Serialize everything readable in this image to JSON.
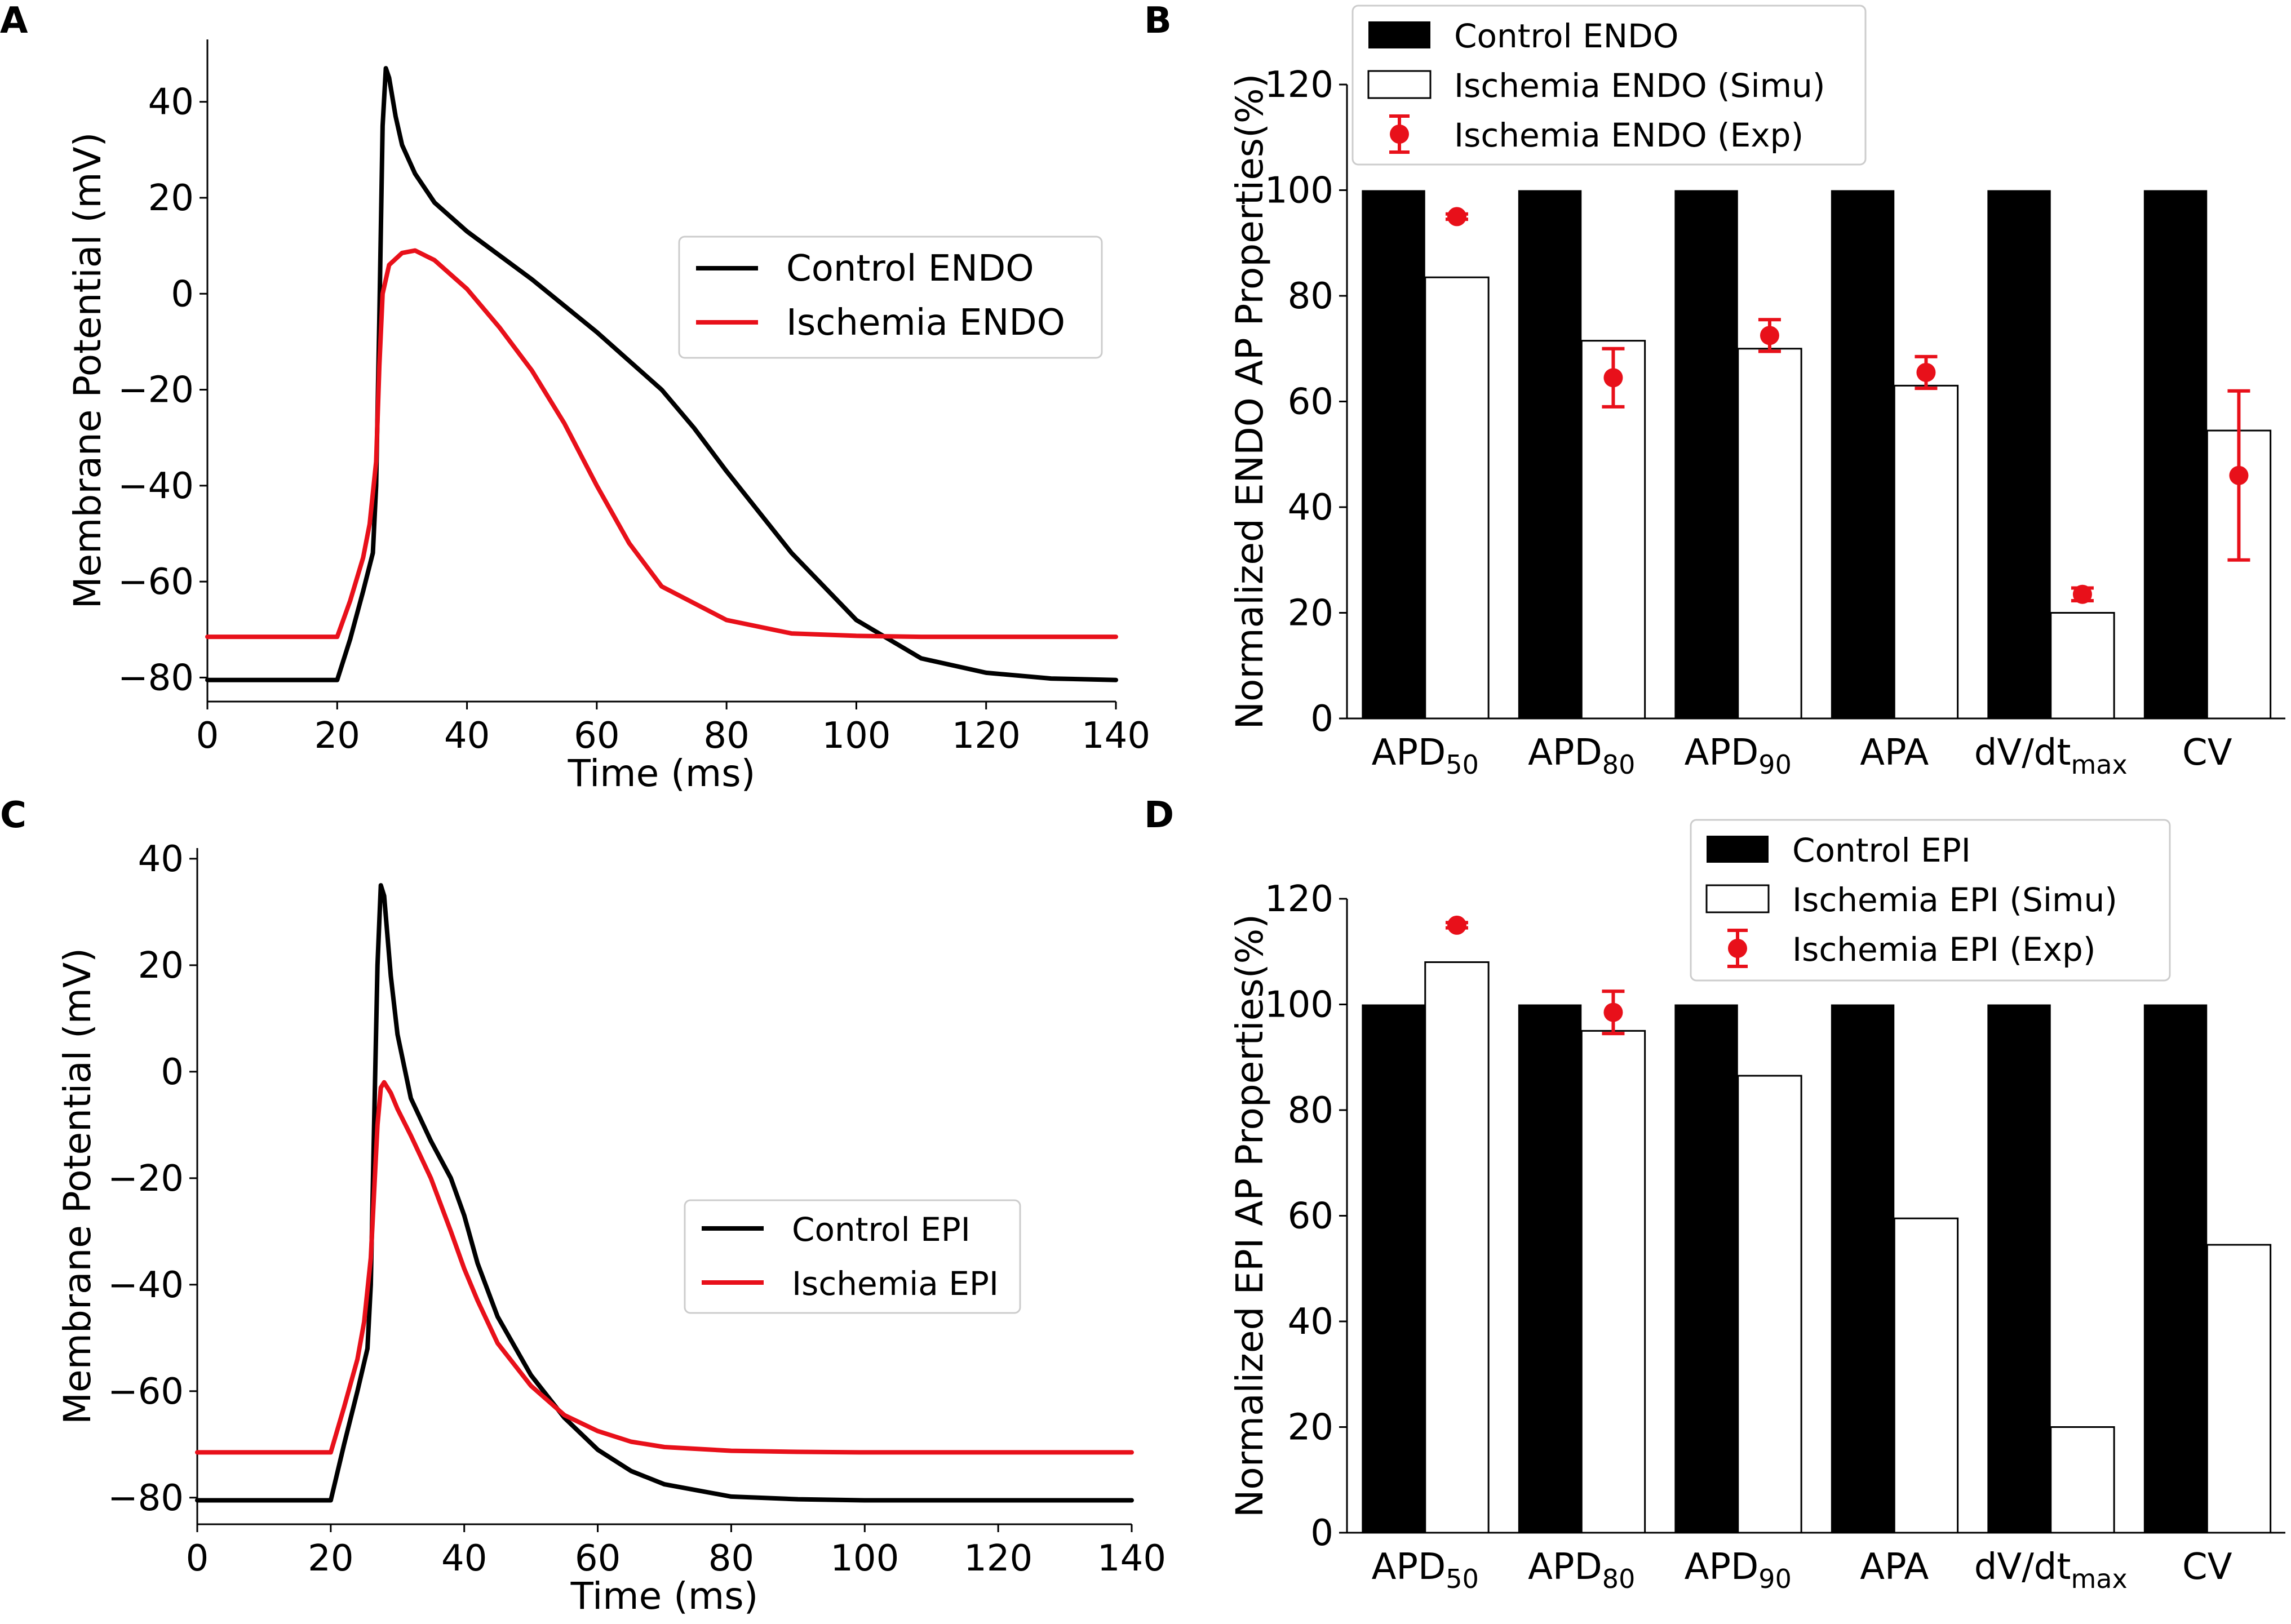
{
  "colors": {
    "control": "#000000",
    "ischemia": "#e8101a",
    "simu_fill": "#ffffff"
  },
  "panel_labels": {
    "a": "A",
    "b": "B",
    "c": "C",
    "d": "D"
  },
  "chart_data": [
    {
      "panel": "A",
      "type": "line",
      "xlabel": "Time (ms)",
      "ylabel": "Membrane Potential (mV)",
      "xlim": [
        0,
        140
      ],
      "ylim": [
        -85,
        53
      ],
      "xticks": [
        0,
        20,
        40,
        60,
        80,
        100,
        120,
        140
      ],
      "yticks": [
        -80,
        -60,
        -40,
        -20,
        0,
        20,
        40
      ],
      "tick_labels_x": [
        "0",
        "20",
        "40",
        "60",
        "80",
        "100",
        "120",
        "140"
      ],
      "tick_labels_y": [
        "−80",
        "−60",
        "−40",
        "−20",
        "0",
        "20",
        "40"
      ],
      "legend": [
        "Control ENDO",
        "Ischemia ENDO"
      ],
      "legend_position": "center-right",
      "series": [
        {
          "name": "Control ENDO",
          "color": "#000000",
          "x": [
            0,
            20,
            22,
            24,
            25.5,
            26,
            26.5,
            27,
            27.5,
            28,
            29,
            30,
            32,
            35,
            40,
            50,
            60,
            70,
            75,
            80,
            90,
            100,
            110,
            120,
            130,
            140
          ],
          "y": [
            -80.5,
            -80.5,
            -72,
            -62,
            -54,
            -40,
            -5,
            35,
            47,
            45,
            37,
            31,
            25,
            19,
            13,
            3,
            -8,
            -20,
            -28,
            -37,
            -54,
            -68,
            -76,
            -79,
            -80.2,
            -80.5
          ]
        },
        {
          "name": "Ischemia ENDO",
          "color": "#e8101a",
          "x": [
            0,
            20,
            22,
            24,
            25,
            26,
            26.5,
            27,
            28,
            30,
            32,
            35,
            40,
            45,
            50,
            55,
            60,
            65,
            70,
            80,
            90,
            100,
            110,
            120,
            140
          ],
          "y": [
            -71.5,
            -71.5,
            -64,
            -55,
            -48,
            -35,
            -15,
            0,
            6,
            8.5,
            9,
            7,
            1,
            -7,
            -16,
            -27,
            -40,
            -52,
            -61,
            -68,
            -70.8,
            -71.3,
            -71.5,
            -71.5,
            -71.5
          ]
        }
      ]
    },
    {
      "panel": "B",
      "type": "bar",
      "ylabel": "Normalized ENDO AP Properties(%)",
      "ylim": [
        0,
        120
      ],
      "yticks": [
        0,
        20,
        40,
        60,
        80,
        100,
        120
      ],
      "categories": [
        {
          "base": "APD",
          "sub": "50"
        },
        {
          "base": "APD",
          "sub": "80"
        },
        {
          "base": "APD",
          "sub": "90"
        },
        {
          "base": "APA",
          "sub": ""
        },
        {
          "base": "dV/dt",
          "sub": "max"
        },
        {
          "base": "CV",
          "sub": ""
        }
      ],
      "series": [
        {
          "name": "Control ENDO",
          "values": [
            100,
            100,
            100,
            100,
            100,
            100
          ]
        },
        {
          "name": "Ischemia ENDO (Simu)",
          "values": [
            83.5,
            71.5,
            70,
            63,
            20,
            54.5
          ]
        },
        {
          "name": "Ischemia ENDO (Exp)",
          "values": [
            95,
            64.5,
            72.5,
            65.5,
            23.5,
            46
          ],
          "errors": [
            0.5,
            5.5,
            3,
            3,
            1.2,
            16
          ]
        }
      ],
      "legend": [
        "Control ENDO",
        "Ischemia ENDO (Simu)",
        "Ischemia ENDO (Exp)"
      ],
      "legend_position": "top-left"
    },
    {
      "panel": "C",
      "type": "line",
      "xlabel": "Time (ms)",
      "ylabel": "Membrane Potential (mV)",
      "xlim": [
        0,
        140
      ],
      "ylim": [
        -85,
        42
      ],
      "xticks": [
        0,
        20,
        40,
        60,
        80,
        100,
        120,
        140
      ],
      "yticks": [
        -80,
        -60,
        -40,
        -20,
        0,
        20,
        40
      ],
      "tick_labels_x": [
        "0",
        "20",
        "40",
        "60",
        "80",
        "100",
        "120",
        "140"
      ],
      "tick_labels_y": [
        "−80",
        "−60",
        "−40",
        "−20",
        "0",
        "20",
        "40"
      ],
      "legend": [
        "Control EPI",
        "Ischemia EPI"
      ],
      "legend_position": "center-right",
      "series": [
        {
          "name": "Control EPI",
          "color": "#000000",
          "x": [
            0,
            20,
            22,
            24,
            25.5,
            26,
            26.5,
            27,
            27.5,
            28,
            29,
            30,
            32,
            35,
            38,
            40,
            42,
            45,
            50,
            55,
            60,
            65,
            70,
            80,
            90,
            100,
            140
          ],
          "y": [
            -80.5,
            -80.5,
            -70,
            -60,
            -52,
            -40,
            -10,
            20,
            35,
            33,
            18,
            7,
            -5,
            -13,
            -20,
            -27,
            -36,
            -46,
            -57,
            -65,
            -71,
            -75,
            -77.5,
            -79.8,
            -80.3,
            -80.5,
            -80.5
          ]
        },
        {
          "name": "Ischemia EPI",
          "color": "#e8101a",
          "x": [
            0,
            20,
            22,
            24,
            25,
            26,
            27,
            27.5,
            28,
            29,
            30,
            32,
            35,
            38,
            40,
            42,
            45,
            50,
            55,
            60,
            65,
            70,
            80,
            90,
            100,
            140
          ],
          "y": [
            -71.5,
            -71.5,
            -63,
            -54,
            -47,
            -35,
            -10,
            -3,
            -2,
            -4,
            -7,
            -12,
            -20,
            -30,
            -37,
            -43,
            -51,
            -59,
            -64.5,
            -67.5,
            -69.5,
            -70.5,
            -71.2,
            -71.4,
            -71.5,
            -71.5
          ]
        }
      ]
    },
    {
      "panel": "D",
      "type": "bar",
      "ylabel": "Normalized EPI AP Properties(%)",
      "ylim": [
        0,
        120
      ],
      "yticks": [
        0,
        20,
        40,
        60,
        80,
        100,
        120
      ],
      "categories": [
        {
          "base": "APD",
          "sub": "50"
        },
        {
          "base": "APD",
          "sub": "80"
        },
        {
          "base": "APD",
          "sub": "90"
        },
        {
          "base": "APA",
          "sub": ""
        },
        {
          "base": "dV/dt",
          "sub": "max"
        },
        {
          "base": "CV",
          "sub": ""
        }
      ],
      "series": [
        {
          "name": "Control EPI",
          "values": [
            100,
            100,
            100,
            100,
            100,
            100
          ]
        },
        {
          "name": "Ischemia EPI (Simu)",
          "values": [
            108,
            95,
            86.5,
            59.5,
            20,
            54.5
          ]
        },
        {
          "name": "Ischemia EPI (Exp)",
          "values": [
            115,
            98.5,
            null,
            null,
            null,
            null
          ],
          "errors": [
            0.5,
            4,
            null,
            null,
            null,
            null
          ]
        }
      ],
      "legend": [
        "Control EPI",
        "Ischemia EPI (Simu)",
        "Ischemia EPI (Exp)"
      ],
      "legend_position": "top-right"
    }
  ]
}
